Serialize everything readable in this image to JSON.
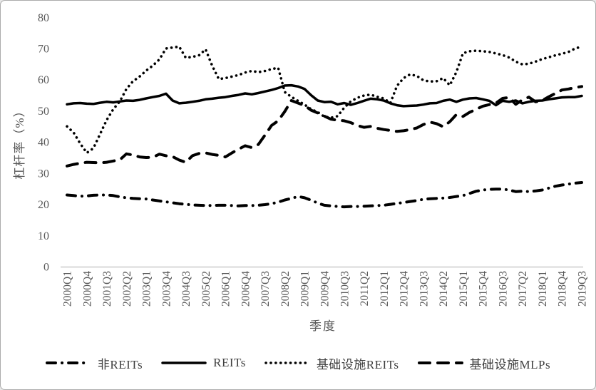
{
  "colors": {
    "series_line": "#000000",
    "axis_text": "#595959",
    "axis_line": "#bfbfbf",
    "legend_text": "#3f3f3f",
    "background": "#ffffff",
    "frame_border": "#ababab"
  },
  "chart_data": {
    "type": "line",
    "title": "",
    "xlabel": "季度",
    "ylabel": "杠杆率（%）",
    "ylim": [
      0,
      80
    ],
    "yticks": [
      0,
      10,
      20,
      30,
      40,
      50,
      60,
      70,
      80
    ],
    "grid": "off",
    "legend_position": "bottom",
    "x_start": "2000Q1",
    "x_end": "2019Q3",
    "x_points": 79,
    "x_tick_labels": [
      "2000Q1",
      "2000Q4",
      "2001Q3",
      "2002Q2",
      "2003Q1",
      "2003Q4",
      "2004Q3",
      "2005Q2",
      "2006Q1",
      "2006Q4",
      "2007Q3",
      "2008Q2",
      "2009Q1",
      "2009Q4",
      "2010Q3",
      "2011Q2",
      "2012Q1",
      "2012Q4",
      "2013Q3",
      "2014Q2",
      "2015Q1",
      "2015Q4",
      "2016Q3",
      "2017Q2",
      "2018Q1",
      "2018Q4",
      "2019Q3"
    ],
    "x_tick_every": 3,
    "series": [
      {
        "name": "非REITs",
        "style": "dash-dot",
        "values": [
          23,
          22.8,
          22.6,
          22.7,
          22.9,
          23,
          23,
          22.8,
          22.4,
          22.1,
          21.9,
          21.8,
          21.7,
          21.4,
          21.1,
          20.8,
          20.5,
          20.2,
          20,
          19.8,
          19.7,
          19.6,
          19.6,
          19.7,
          19.7,
          19.6,
          19.5,
          19.6,
          19.6,
          19.7,
          19.9,
          20.2,
          20.7,
          21.4,
          21.9,
          22.5,
          22.1,
          21.3,
          20.4,
          19.7,
          19.5,
          19.3,
          19.2,
          19.3,
          19.3,
          19.4,
          19.5,
          19.6,
          19.7,
          20,
          20.3,
          20.6,
          20.9,
          21.2,
          21.6,
          21.8,
          21.9,
          22,
          22.2,
          22.5,
          22.8,
          23.5,
          24.2,
          24.6,
          24.8,
          24.9,
          24.9,
          24.6,
          24.1,
          24.2,
          24.1,
          24.3,
          24.6,
          25.2,
          25.8,
          26.2,
          26.5,
          26.8,
          27
        ]
      },
      {
        "name": "REITs",
        "style": "solid",
        "values": [
          52.1,
          52.4,
          52.5,
          52.3,
          52.2,
          52.6,
          52.9,
          52.7,
          53,
          53.3,
          53.2,
          53.5,
          54,
          54.4,
          54.8,
          55.5,
          53.3,
          52.4,
          52.6,
          52.9,
          53.2,
          53.7,
          53.9,
          54.2,
          54.4,
          54.8,
          55.1,
          55.6,
          55.3,
          55.7,
          56.2,
          56.7,
          57.3,
          58.1,
          58.2,
          57.8,
          57,
          55,
          53.3,
          52.8,
          52.9,
          52.1,
          52.5,
          51.9,
          52.5,
          53.2,
          53.9,
          53.7,
          53.3,
          52.4,
          51.8,
          51.5,
          51.6,
          51.7,
          52,
          52.4,
          52.5,
          53.2,
          53.6,
          52.9,
          53.6,
          54,
          54.1,
          53.7,
          53.2,
          51.8,
          53.2,
          52.9,
          53.3,
          52.4,
          52.9,
          53.2,
          53.3,
          53.7,
          54,
          54.3,
          54.4,
          54.4,
          54.8
        ]
      },
      {
        "name": "基础设施REITs",
        "style": "dotted",
        "values": [
          45,
          43,
          39.5,
          36.5,
          38,
          42.5,
          47,
          50.5,
          53,
          57,
          59.5,
          61,
          62.9,
          64.5,
          66.5,
          70,
          70.3,
          70.6,
          67,
          67.3,
          67.8,
          69.7,
          64.5,
          60.2,
          60.5,
          61,
          61.5,
          62.3,
          62.8,
          62.4,
          62.8,
          63.4,
          63.8,
          56,
          54.5,
          53.2,
          52,
          50.5,
          49.6,
          48.1,
          47.8,
          48.3,
          51,
          53,
          54.2,
          54.9,
          55.2,
          54.5,
          54,
          52.5,
          58,
          60.5,
          61.7,
          61.2,
          59.8,
          59.4,
          59.5,
          60.5,
          58.2,
          62.4,
          68.5,
          69.1,
          69.3,
          69.1,
          68.9,
          68.4,
          67.9,
          67.1,
          65.8,
          64.9,
          65.1,
          65.8,
          66.6,
          67.2,
          67.8,
          68.3,
          68.9,
          70,
          70.6
        ]
      },
      {
        "name": "基础设施MLPs",
        "style": "dashed",
        "values": [
          32.3,
          32.8,
          33.2,
          33.5,
          33.4,
          33.3,
          33.5,
          33.9,
          34.3,
          36.2,
          35.8,
          35.2,
          35,
          35.1,
          36.1,
          35.6,
          35.3,
          34.2,
          33.5,
          35.6,
          36.3,
          36.5,
          36,
          35.7,
          35.2,
          36.5,
          37.7,
          38.8,
          38.2,
          39.2,
          42.2,
          45.3,
          46.8,
          49.8,
          53.3,
          52.5,
          51.7,
          50.2,
          49.3,
          48.3,
          47.3,
          47,
          46.8,
          46.2,
          45.3,
          44.7,
          45,
          44.4,
          44,
          43.7,
          43.4,
          43.6,
          44,
          44.5,
          45.6,
          46.4,
          45.9,
          44.9,
          46.5,
          48.8,
          48.2,
          49.5,
          50.5,
          51.5,
          52,
          52.5,
          54,
          54.3,
          52.1,
          53.5,
          54.4,
          52.9,
          53.3,
          54.5,
          55.6,
          56.7,
          57,
          57.5,
          57.8
        ]
      }
    ]
  }
}
